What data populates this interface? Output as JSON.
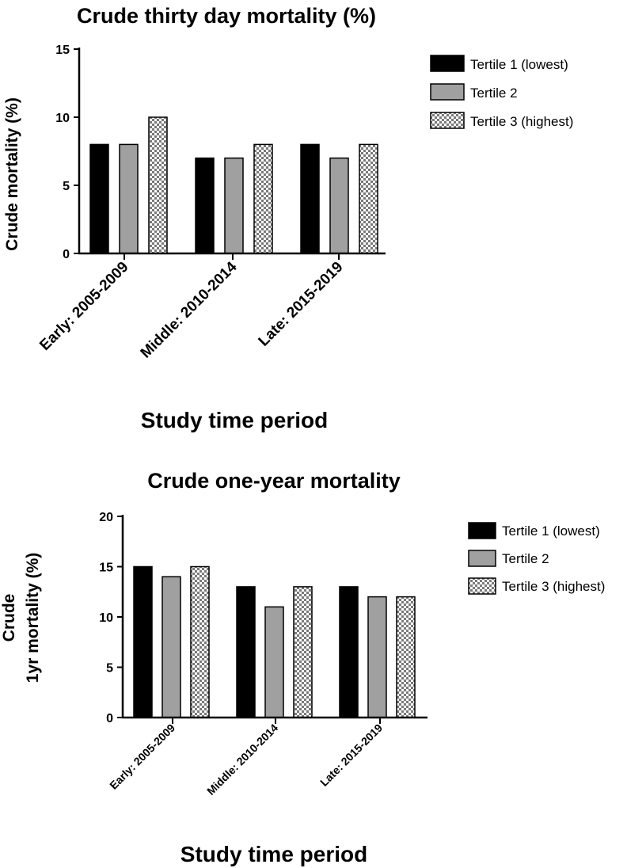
{
  "chart_data": [
    {
      "type": "bar",
      "title": "Crude thirty day mortality (%)",
      "ylabel": "Crude mortality (%)",
      "xlabel": "Study time period",
      "categories": [
        "Early: 2005-2009",
        "Middle: 2010-2014",
        "Late: 2015-2019"
      ],
      "series": [
        {
          "name": "Tertile 1 (lowest)",
          "values": [
            8,
            7,
            8
          ]
        },
        {
          "name": "Tertile 2",
          "values": [
            8,
            7,
            7
          ]
        },
        {
          "name": "Tertile 3 (highest)",
          "values": [
            10,
            8,
            8
          ]
        }
      ],
      "ylim": [
        0,
        15
      ],
      "yticks": [
        0,
        5,
        10,
        15
      ],
      "legend_position": "right",
      "grid": false
    },
    {
      "type": "bar",
      "title": "Crude one-year mortality",
      "ylabel": [
        "Crude",
        "1yr mortality (%)"
      ],
      "xlabel": "Study time period",
      "categories": [
        "Early: 2005-2009",
        "Middle: 2010-2014",
        "Late: 2015-2019"
      ],
      "series": [
        {
          "name": "Tertile 1 (lowest)",
          "values": [
            15,
            13,
            13
          ]
        },
        {
          "name": "Tertile 2",
          "values": [
            14,
            11,
            12
          ]
        },
        {
          "name": "Tertile 3 (highest)",
          "values": [
            15,
            13,
            12
          ]
        }
      ],
      "ylim": [
        0,
        20
      ],
      "yticks": [
        0,
        5,
        10,
        15,
        20
      ],
      "legend_position": "right",
      "grid": false
    }
  ],
  "colors": {
    "tertile1": "#000000",
    "tertile2": "#a0a0a0",
    "tertile3_pattern": "checkerboard",
    "axis": "#000000"
  }
}
